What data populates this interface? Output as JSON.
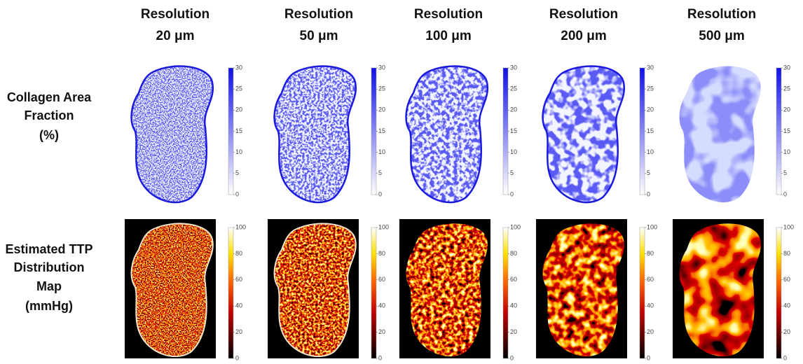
{
  "columns": [
    {
      "title": "Resolution",
      "resolution": "20 μm"
    },
    {
      "title": "Resolution",
      "resolution": "50 μm"
    },
    {
      "title": "Resolution",
      "resolution": "100 μm"
    },
    {
      "title": "Resolution",
      "resolution": "200 μm"
    },
    {
      "title": "Resolution",
      "resolution": "500 μm"
    }
  ],
  "rows": [
    {
      "label_lines": [
        "Collagen Area",
        "Fraction",
        "(%)"
      ],
      "colorbar_ticks": [
        0,
        5,
        10,
        15,
        20,
        25,
        30
      ]
    },
    {
      "label_lines": [
        "Estimated TTP",
        "Distribution",
        "Map",
        "(mmHg)"
      ],
      "colorbar_ticks": [
        0,
        20,
        40,
        60,
        80,
        100
      ]
    }
  ]
}
